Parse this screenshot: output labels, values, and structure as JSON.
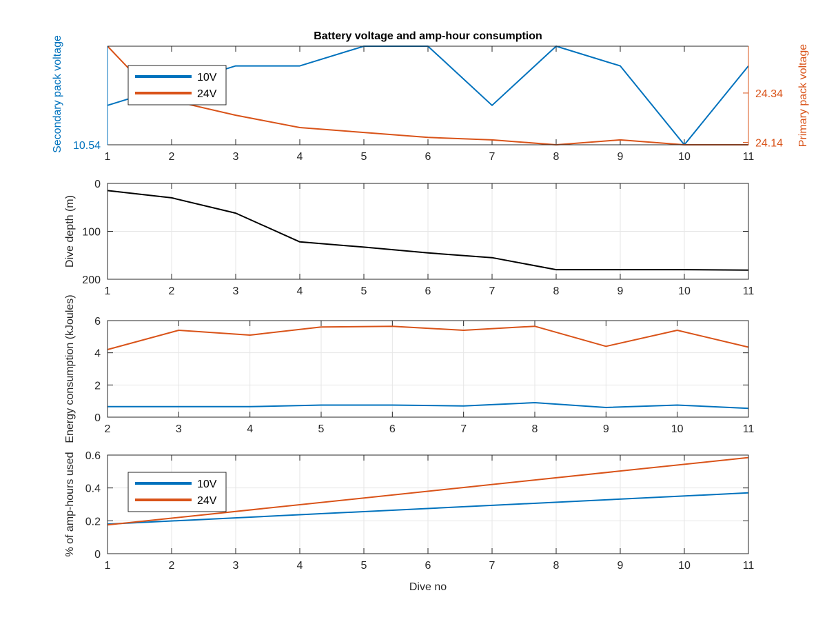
{
  "figure": {
    "background": "#ffffff",
    "grid_color": "#e6e6e6",
    "axis_color": "#262626"
  },
  "colors": {
    "series_10v": "#0072BD",
    "series_24v": "#D95319",
    "depth": "#000000"
  },
  "chart_data": [
    {
      "type": "line",
      "title": "Battery voltage and amp-hour consumption",
      "xlabel": "",
      "xlim": [
        1,
        11
      ],
      "x_ticks": [
        1,
        2,
        3,
        4,
        5,
        6,
        7,
        8,
        9,
        10,
        11
      ],
      "grid": false,
      "legend": "top-left",
      "left_axis": {
        "label": "Secondary pack voltage",
        "ylim": [
          10.54,
          10.56
        ],
        "ticks": [
          10.54
        ],
        "tick_labels": [
          "10.54"
        ]
      },
      "right_axis": {
        "label": "Primary pack voltage",
        "ylim": [
          24.13,
          24.53
        ],
        "ticks": [
          24.14,
          24.34
        ],
        "tick_labels": [
          "24.14",
          "24.34"
        ]
      },
      "series": [
        {
          "name": "10V",
          "axis": "left",
          "x": [
            1,
            2,
            3,
            4,
            5,
            6,
            7,
            8,
            9,
            10,
            11
          ],
          "values": [
            10.548,
            10.552,
            10.556,
            10.556,
            10.56,
            10.56,
            10.548,
            10.56,
            10.556,
            10.54,
            10.556
          ]
        },
        {
          "name": "24V",
          "axis": "right",
          "x": [
            1,
            1.33,
            2,
            3,
            4,
            5,
            6,
            7,
            8,
            9,
            10,
            11
          ],
          "values": [
            24.53,
            24.44,
            24.31,
            24.25,
            24.2,
            24.18,
            24.16,
            24.15,
            24.13,
            24.15,
            24.13,
            24.13
          ]
        }
      ]
    },
    {
      "type": "line",
      "xlim": [
        1,
        11
      ],
      "x_ticks": [
        1,
        2,
        3,
        4,
        5,
        6,
        7,
        8,
        9,
        10,
        11
      ],
      "ylabel": "Dive depth (m)",
      "ylim": [
        0,
        200
      ],
      "y_reversed": true,
      "y_ticks": [
        0,
        100,
        200
      ],
      "grid": true,
      "series": [
        {
          "x": [
            1,
            2,
            3,
            4,
            5,
            6,
            7,
            8,
            9,
            10,
            11
          ],
          "values": [
            15,
            30,
            62,
            122,
            133,
            145,
            155,
            180,
            180,
            180,
            181
          ]
        }
      ]
    },
    {
      "type": "line",
      "xlim": [
        2,
        11
      ],
      "x_ticks": [
        2,
        3,
        4,
        5,
        6,
        7,
        8,
        9,
        10,
        11
      ],
      "ylabel": "Energy consumption (kJoules)",
      "ylim": [
        0,
        6
      ],
      "y_ticks": [
        0,
        2,
        4,
        6
      ],
      "grid": true,
      "series": [
        {
          "name": "10V",
          "x": [
            2,
            3,
            4,
            5,
            6,
            7,
            8,
            9,
            10,
            11
          ],
          "values": [
            0.65,
            0.65,
            0.65,
            0.75,
            0.75,
            0.7,
            0.9,
            0.6,
            0.75,
            0.55
          ]
        },
        {
          "name": "24V",
          "x": [
            2,
            3,
            4,
            5,
            6,
            7,
            8,
            9,
            10,
            11
          ],
          "values": [
            4.2,
            5.4,
            5.1,
            5.6,
            5.65,
            5.4,
            5.65,
            4.4,
            5.4,
            4.35
          ]
        }
      ]
    },
    {
      "type": "line",
      "xlabel": "Dive no",
      "xlim": [
        1,
        11
      ],
      "x_ticks": [
        1,
        2,
        3,
        4,
        5,
        6,
        7,
        8,
        9,
        10,
        11
      ],
      "ylabel": "% of amp-hours used",
      "ylim": [
        0,
        0.6
      ],
      "y_ticks": [
        0,
        0.2,
        0.4,
        0.6
      ],
      "grid": true,
      "legend": "left",
      "series": [
        {
          "name": "10V",
          "x": [
            1,
            11
          ],
          "values": [
            0.18,
            0.37
          ]
        },
        {
          "name": "24V",
          "x": [
            1,
            11
          ],
          "values": [
            0.175,
            0.585
          ]
        }
      ]
    }
  ]
}
